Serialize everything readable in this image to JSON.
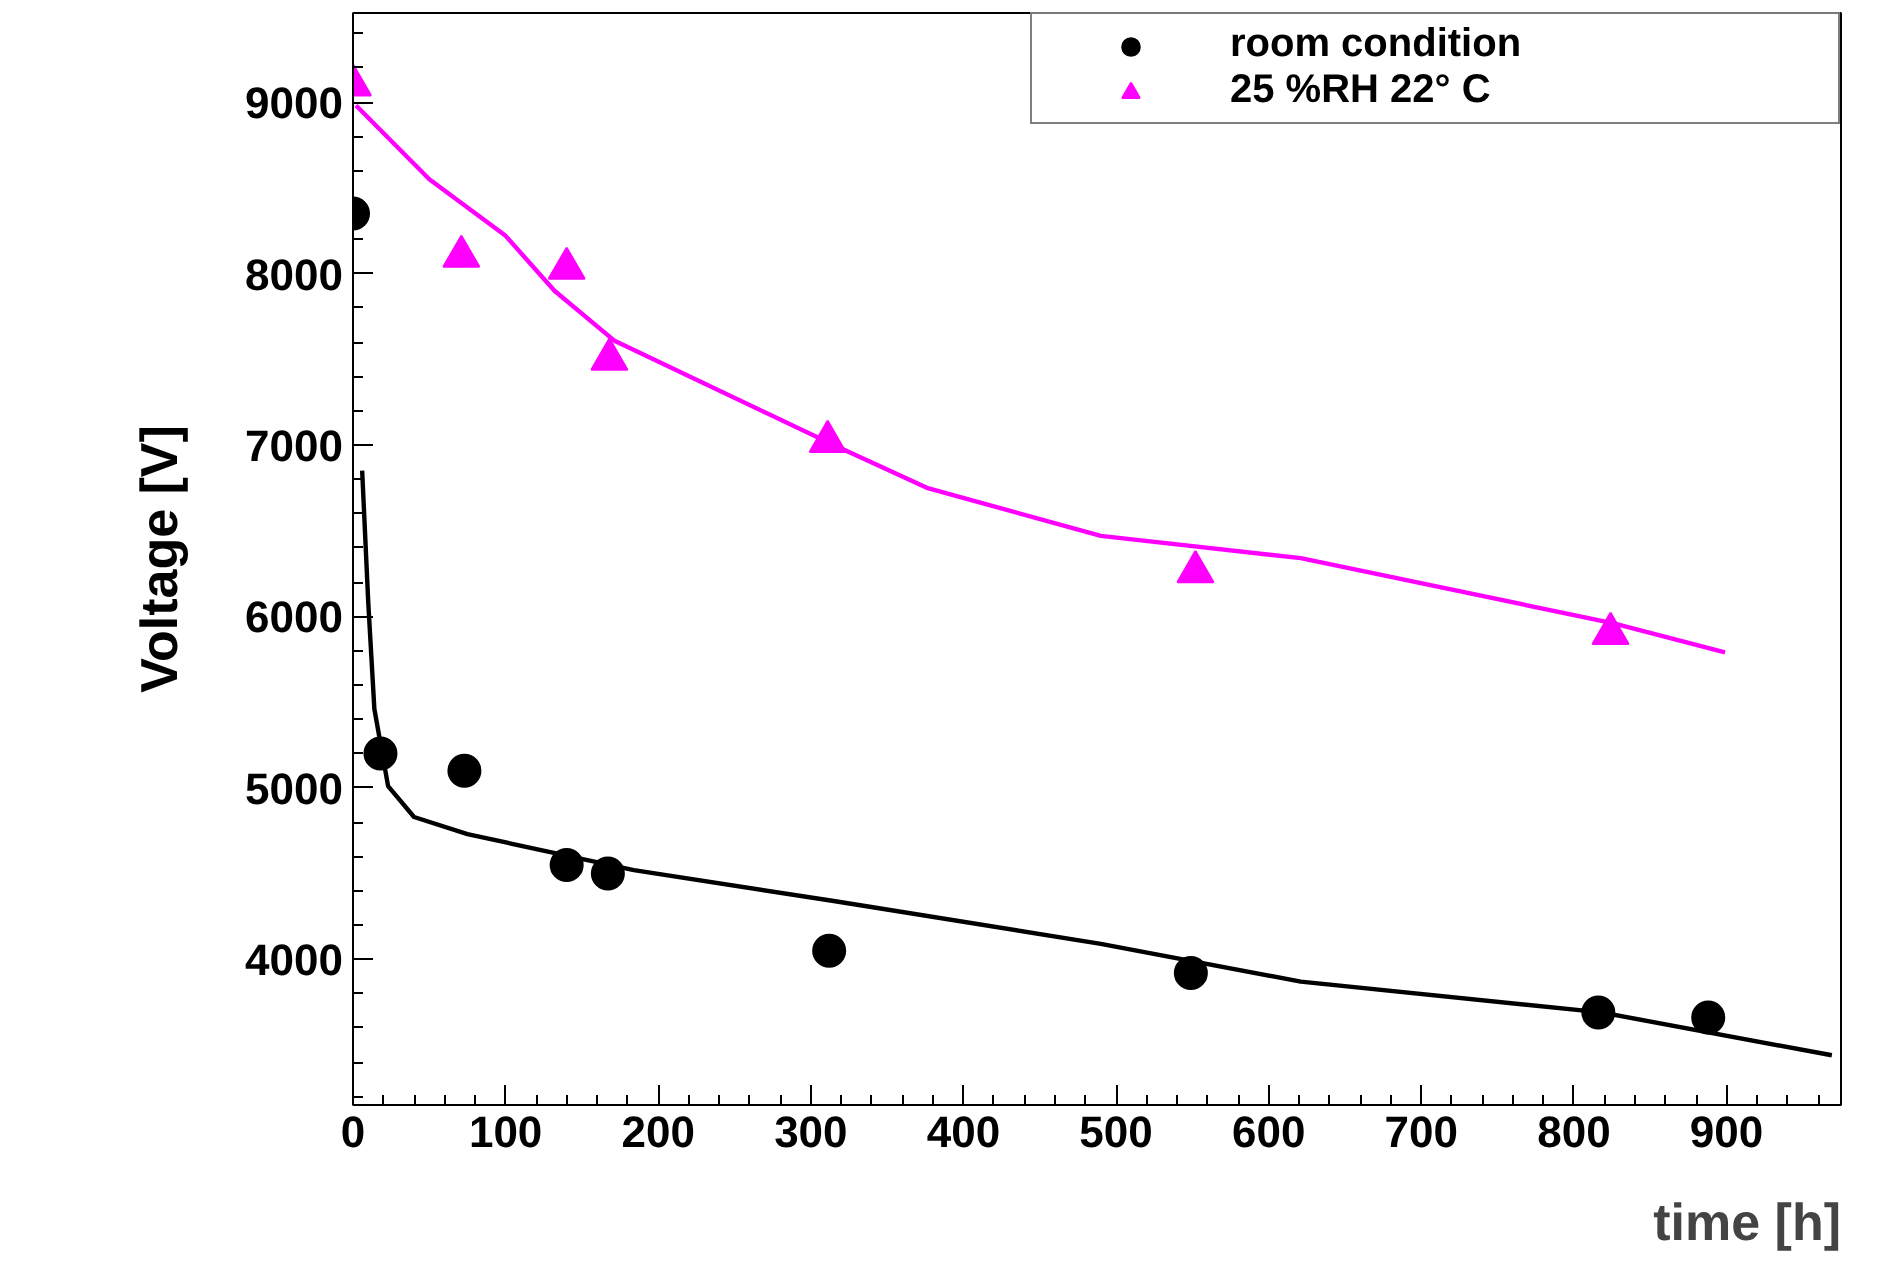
{
  "chart_data": {
    "type": "scatter",
    "xlabel": "time [h]",
    "ylabel": "Voltage [V]",
    "xlim": [
      0,
      975
    ],
    "ylim": [
      3150,
      9520
    ],
    "xticks": [
      0,
      100,
      200,
      300,
      400,
      500,
      600,
      700,
      800,
      900
    ],
    "yticks": [
      4000,
      5000,
      6000,
      7000,
      8000,
      9000
    ],
    "grid": false,
    "legend": "top right",
    "series": [
      {
        "name": "room condition",
        "marker": "circle",
        "color": "#000000",
        "x": [
          0,
          18,
          73,
          140,
          167,
          312,
          549,
          816,
          888
        ],
        "values": [
          8350,
          5200,
          5100,
          4550,
          4500,
          4050,
          3920,
          3690,
          3660
        ]
      },
      {
        "name": "25 %RH 22° C",
        "marker": "triangle",
        "color": "#ff00ff",
        "x": [
          0,
          71,
          140,
          168,
          311,
          552,
          824
        ],
        "values": [
          9100,
          8100,
          8030,
          7500,
          7020,
          6260,
          5900
        ]
      },
      {
        "type": "line",
        "color": "#000000",
        "x": [
          6,
          10,
          14,
          23,
          40,
          75,
          184,
          315,
          490,
          621,
          818,
          969
        ],
        "values": [
          6850,
          6080,
          5460,
          5010,
          4830,
          4730,
          4520,
          4340,
          4090,
          3870,
          3690,
          3440
        ]
      },
      {
        "type": "line",
        "color": "#ff00ff",
        "x": [
          2,
          50,
          100,
          132,
          171,
          315,
          376,
          490,
          621,
          826,
          899
        ],
        "values": [
          8980,
          8550,
          8220,
          7900,
          7610,
          7000,
          6750,
          6470,
          6340,
          5960,
          5790
        ]
      }
    ]
  }
}
